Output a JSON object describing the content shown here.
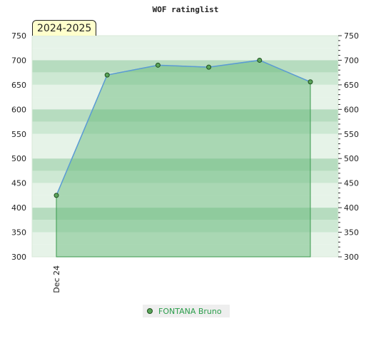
{
  "chart_data": {
    "type": "area",
    "title": "WOF ratinglist",
    "season_label": "2024-2025",
    "x": [
      "Dec 24",
      "",
      "",
      "",
      "",
      ""
    ],
    "series": [
      {
        "name": "FONTANA Bruno",
        "values": [
          425,
          670,
          690,
          686,
          700,
          656
        ]
      }
    ],
    "ylim": [
      300,
      750
    ],
    "yticks": [
      300,
      350,
      400,
      450,
      500,
      550,
      600,
      650,
      700,
      750
    ],
    "xlabel": "",
    "ylabel": "",
    "grid": true,
    "legend": "bottom-center",
    "colors": {
      "band_dark": "#b6dcbf",
      "band_mid": "#cde8d3",
      "band_light": "#e6f3e8",
      "band_pale": "#f2f9f3",
      "fill": "#5fb673",
      "line": "#5b9bd5",
      "marker": "#5aa55a",
      "marker_stroke": "#1f4f1f"
    }
  }
}
